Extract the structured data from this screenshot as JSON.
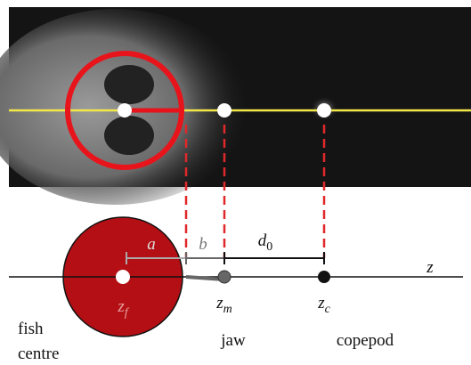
{
  "labels": {
    "a": "a",
    "b": "b",
    "d0": {
      "symbol": "d",
      "subscript": "0"
    },
    "z": "z",
    "zf": {
      "symbol": "z",
      "subscript": "f"
    },
    "zm": {
      "symbol": "z",
      "subscript": "m"
    },
    "zc": {
      "symbol": "z",
      "subscript": "c"
    },
    "fish_centre": [
      "fish",
      "centre"
    ],
    "jaw": "jaw",
    "copepod": "copepod"
  }
}
